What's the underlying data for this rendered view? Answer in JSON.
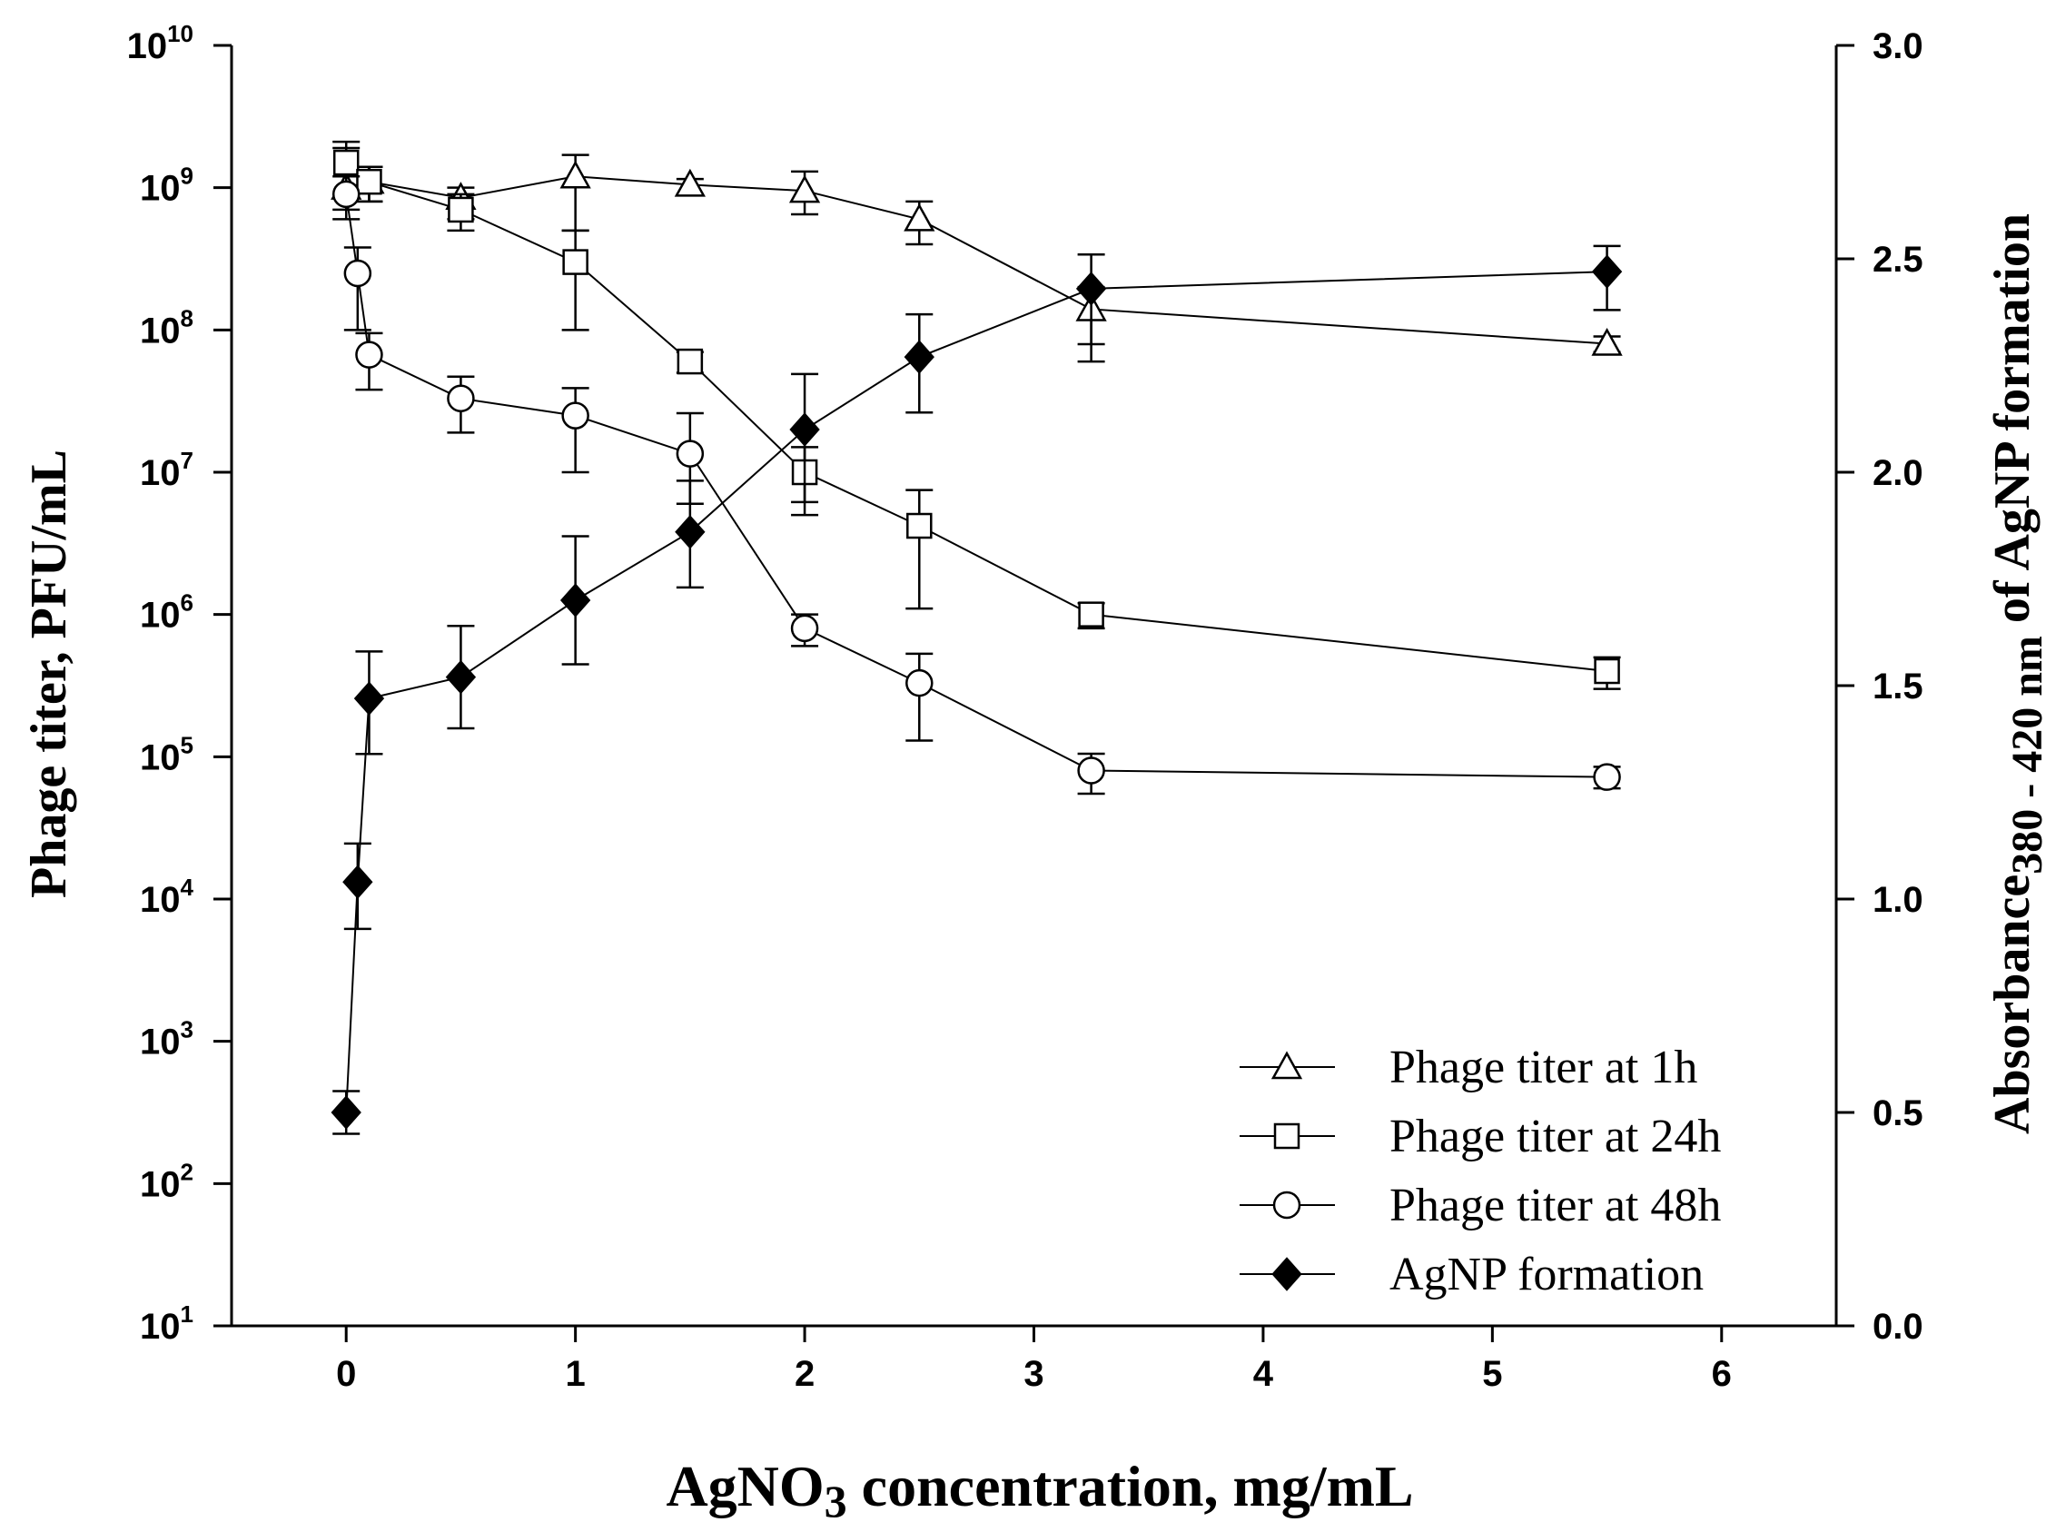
{
  "chart_data": {
    "type": "line",
    "title": "",
    "xlabel": {
      "prefix": "AgNO",
      "sub": "3",
      "suffix": " concentration, mg/mL"
    },
    "ylabel_left": "Phage titer, PFU/mL",
    "ylabel_right": {
      "prefix": "Absorbance",
      "sub": "380 - 420 nm",
      "suffix": " of AgNP formation"
    },
    "xlim": [
      -0.5,
      6.5
    ],
    "ylim_left_log10": [
      1,
      10
    ],
    "ylim_right": [
      0.0,
      3.0
    ],
    "x_ticks": [
      "0",
      "1",
      "2",
      "3",
      "4",
      "5",
      "6"
    ],
    "y_left_ticks": [
      {
        "base": "10",
        "exp": "1"
      },
      {
        "base": "10",
        "exp": "2"
      },
      {
        "base": "10",
        "exp": "3"
      },
      {
        "base": "10",
        "exp": "4"
      },
      {
        "base": "10",
        "exp": "5"
      },
      {
        "base": "10",
        "exp": "6"
      },
      {
        "base": "10",
        "exp": "7"
      },
      {
        "base": "10",
        "exp": "8"
      },
      {
        "base": "10",
        "exp": "9"
      },
      {
        "base": "10",
        "exp": "10"
      }
    ],
    "y_right_ticks": [
      "0.0",
      "0.5",
      "1.0",
      "1.5",
      "2.0",
      "2.5",
      "3.0"
    ],
    "legend_position": "bottom-right",
    "series": [
      {
        "name": "Phage titer at 1h",
        "marker": "triangle-open",
        "axis": "left",
        "x": [
          0,
          0.1,
          0.5,
          1,
          1.5,
          2,
          2.5,
          3.25,
          5.5
        ],
        "y": [
          1000000000.0,
          1100000000.0,
          850000000.0,
          1200000000.0,
          1050000000.0,
          950000000.0,
          600000000.0,
          140000000.0,
          80000000.0
        ],
        "err_low": [
          700000000.0,
          800000000.0,
          600000000.0,
          500000000.0,
          900000000.0,
          650000000.0,
          400000000.0,
          60000000.0,
          70000000.0
        ],
        "err_high": [
          2100000000.0,
          1400000000.0,
          1000000000.0,
          1700000000.0,
          1150000000.0,
          1300000000.0,
          800000000.0,
          200000000.0,
          90000000.0
        ]
      },
      {
        "name": "Phage titer at 24h",
        "marker": "square-open",
        "axis": "left",
        "x": [
          0,
          0.1,
          0.5,
          1,
          1.5,
          2,
          2.5,
          3.25,
          5.5
        ],
        "y": [
          1500000000.0,
          1100000000.0,
          700000000.0,
          300000000.0,
          60000000.0,
          10000000.0,
          4200000.0,
          1000000.0,
          400000.0
        ],
        "err_low": [
          900000000.0,
          800000000.0,
          500000000.0,
          100000000.0,
          50000000.0,
          5000000.0,
          1100000.0,
          800000.0,
          300000.0
        ],
        "err_high": [
          1900000000.0,
          1400000000.0,
          900000000.0,
          500000000.0,
          70000000.0,
          15000000.0,
          7500000.0,
          1200000.0,
          500000.0
        ]
      },
      {
        "name": "Phage titer at 48h",
        "marker": "circle-open",
        "axis": "left",
        "x": [
          0,
          0.05,
          0.1,
          0.5,
          1,
          1.5,
          2,
          2.5,
          3.25,
          5.5
        ],
        "y": [
          900000000.0,
          250000000.0,
          67000000.0,
          33000000.0,
          25000000.0,
          13500000.0,
          800000.0,
          330000.0,
          80000.0,
          72000.0
        ],
        "err_low": [
          600000000.0,
          100000000.0,
          38000000.0,
          19000000.0,
          10000000.0,
          6000000.0,
          600000.0,
          130000.0,
          55000.0,
          60000.0
        ],
        "err_high": [
          1200000000.0,
          380000000.0,
          95000000.0,
          47000000.0,
          39000000.0,
          26000000.0,
          1000000.0,
          530000.0,
          105000.0,
          85000.0
        ]
      },
      {
        "name": "AgNP formation",
        "marker": "diamond-filled",
        "axis": "right",
        "x": [
          0,
          0.05,
          0.1,
          0.5,
          1,
          1.5,
          2,
          2.5,
          3.25,
          5.5
        ],
        "y": [
          0.5,
          1.04,
          1.47,
          1.52,
          1.7,
          1.86,
          2.1,
          2.27,
          2.43,
          2.47
        ],
        "err_low": [
          0.45,
          0.93,
          1.34,
          1.4,
          1.55,
          1.73,
          1.93,
          2.14,
          2.3,
          2.38
        ],
        "err_high": [
          0.55,
          1.13,
          1.58,
          1.64,
          1.85,
          1.98,
          2.23,
          2.37,
          2.51,
          2.53
        ]
      }
    ]
  }
}
